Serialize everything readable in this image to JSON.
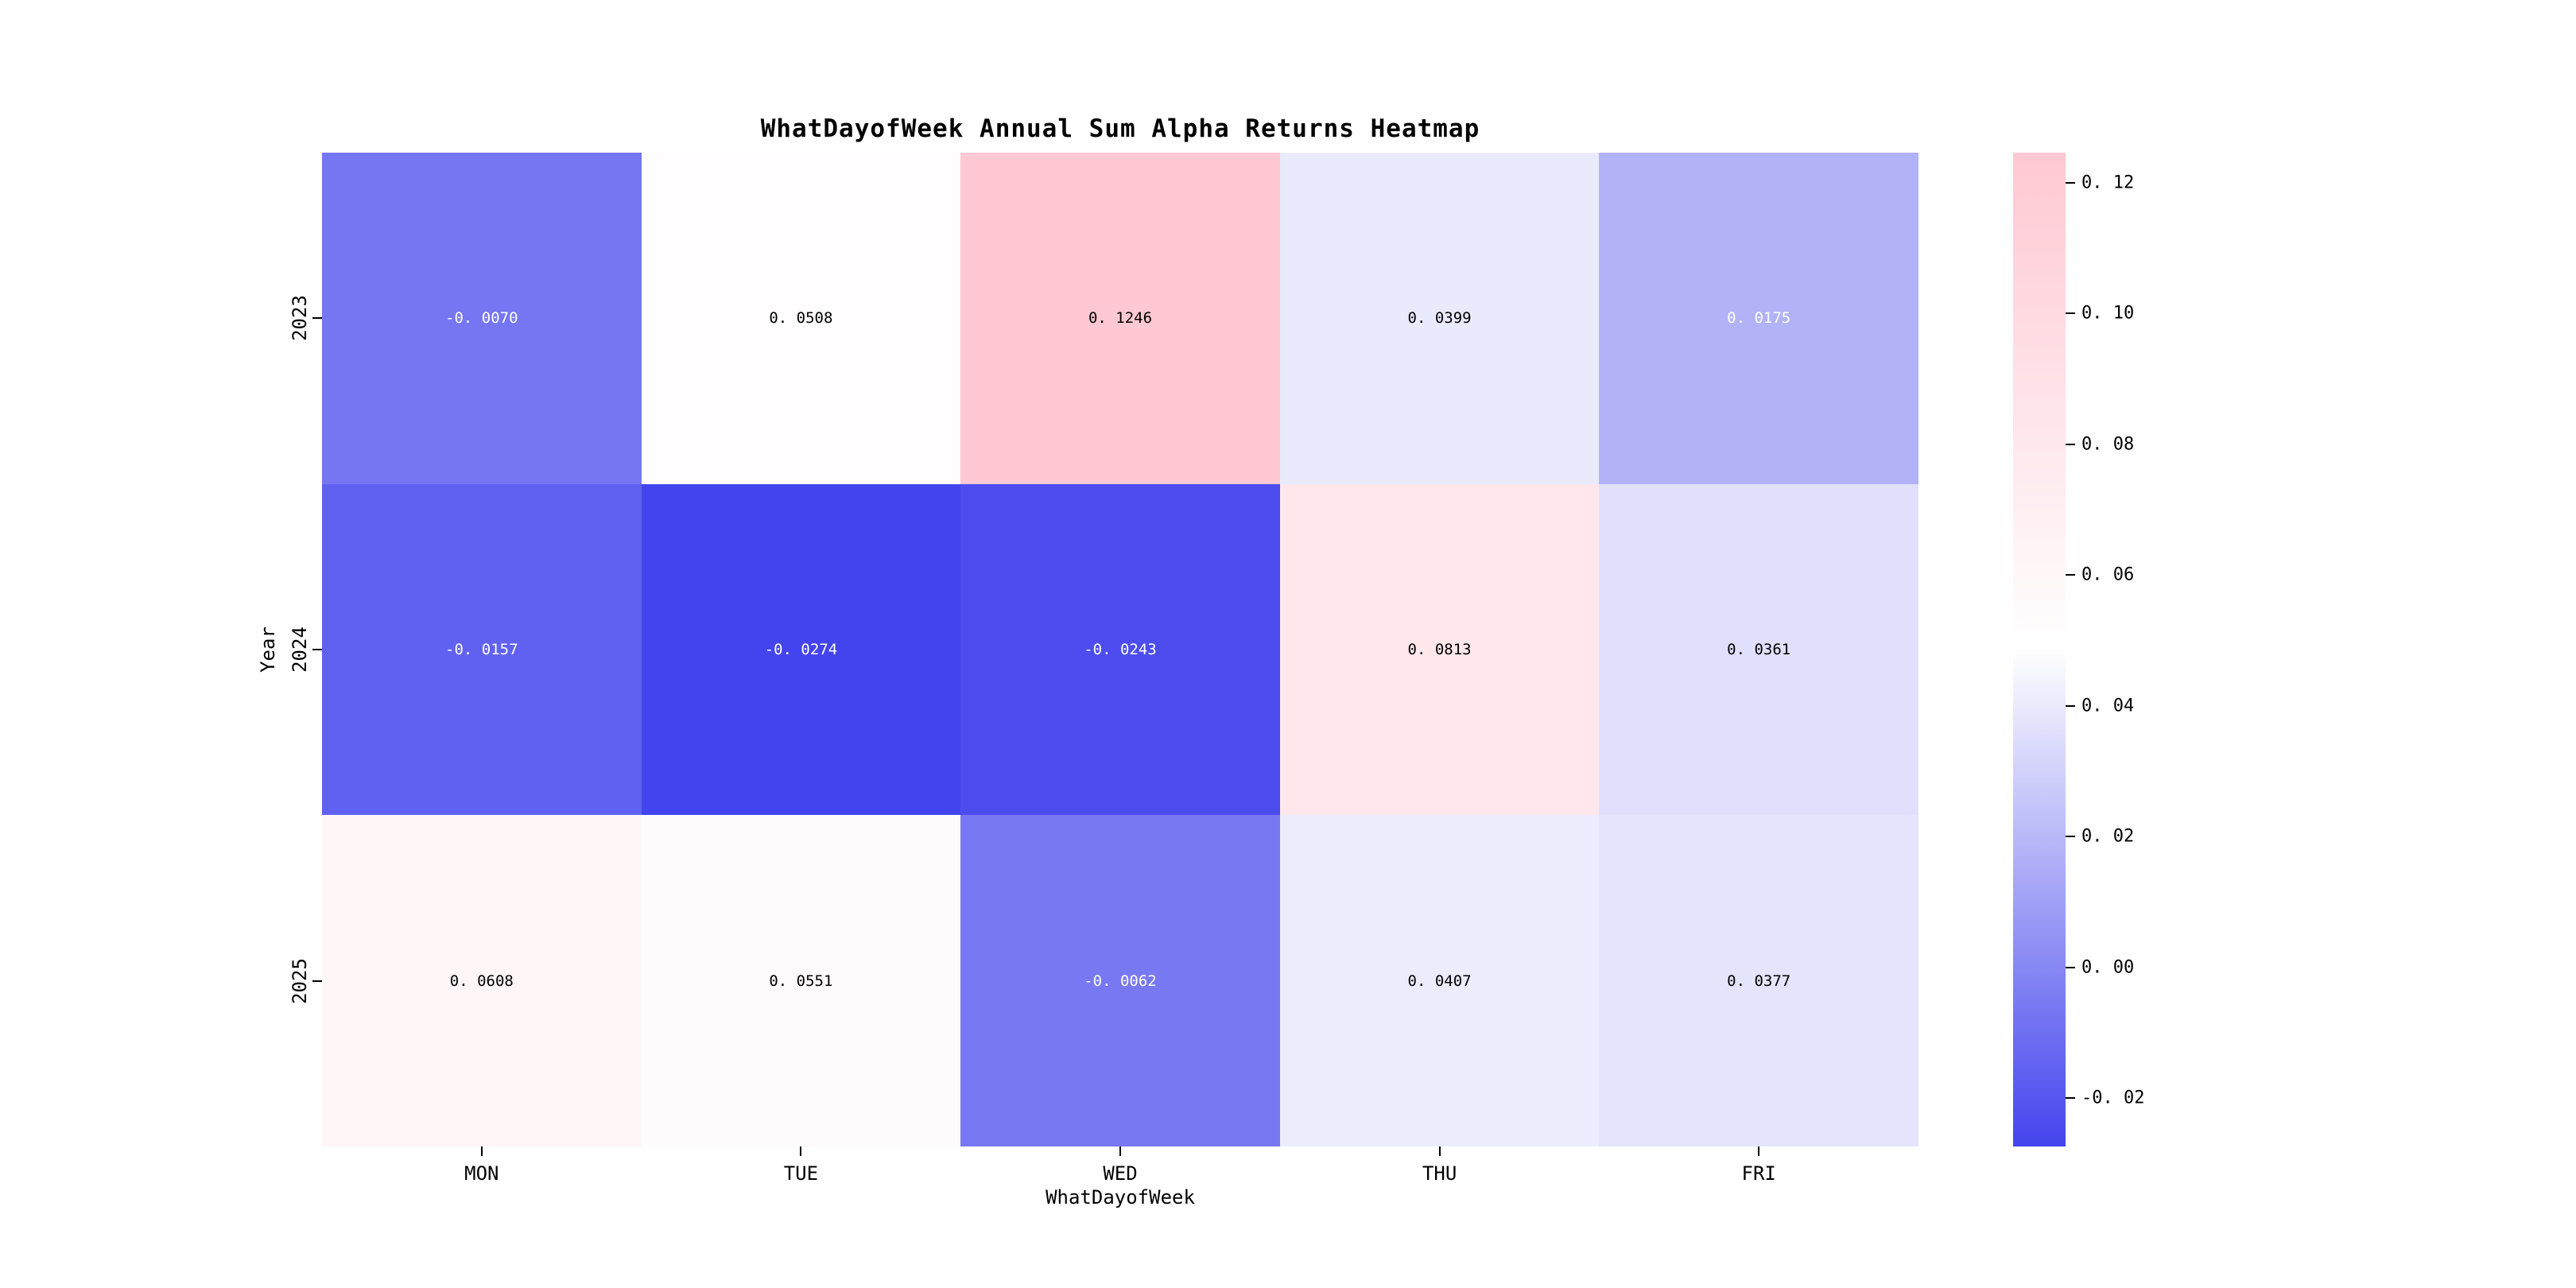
{
  "chart_data": {
    "type": "heatmap",
    "title": "WhatDayofWeek Annual Sum Alpha Returns Heatmap",
    "xlabel": "WhatDayofWeek",
    "ylabel": "Year",
    "columns": [
      "MON",
      "TUE",
      "WED",
      "THU",
      "FRI"
    ],
    "rows": [
      "2023",
      "2024",
      "2025"
    ],
    "values": [
      [
        -0.007,
        0.0508,
        0.1246,
        0.0399,
        0.0175
      ],
      [
        -0.0157,
        -0.0274,
        -0.0243,
        0.0813,
        0.0361
      ],
      [
        0.0608,
        0.0551,
        -0.0062,
        0.0407,
        0.0377
      ]
    ],
    "vmin": -0.0274,
    "vmax": 0.1246,
    "colormap": {
      "low": "#4444ee",
      "mid": "#ffffff",
      "high": "#ffc8d2"
    },
    "annotation_text_colors": {
      "on_dark": "#ffffff",
      "on_light": "#000000"
    },
    "colorbar_ticks": [
      0.12,
      0.1,
      0.08,
      0.06,
      0.04,
      0.02,
      0.0,
      -0.02
    ],
    "colorbar_position": "right",
    "grid": false,
    "background": "#ffffff"
  }
}
